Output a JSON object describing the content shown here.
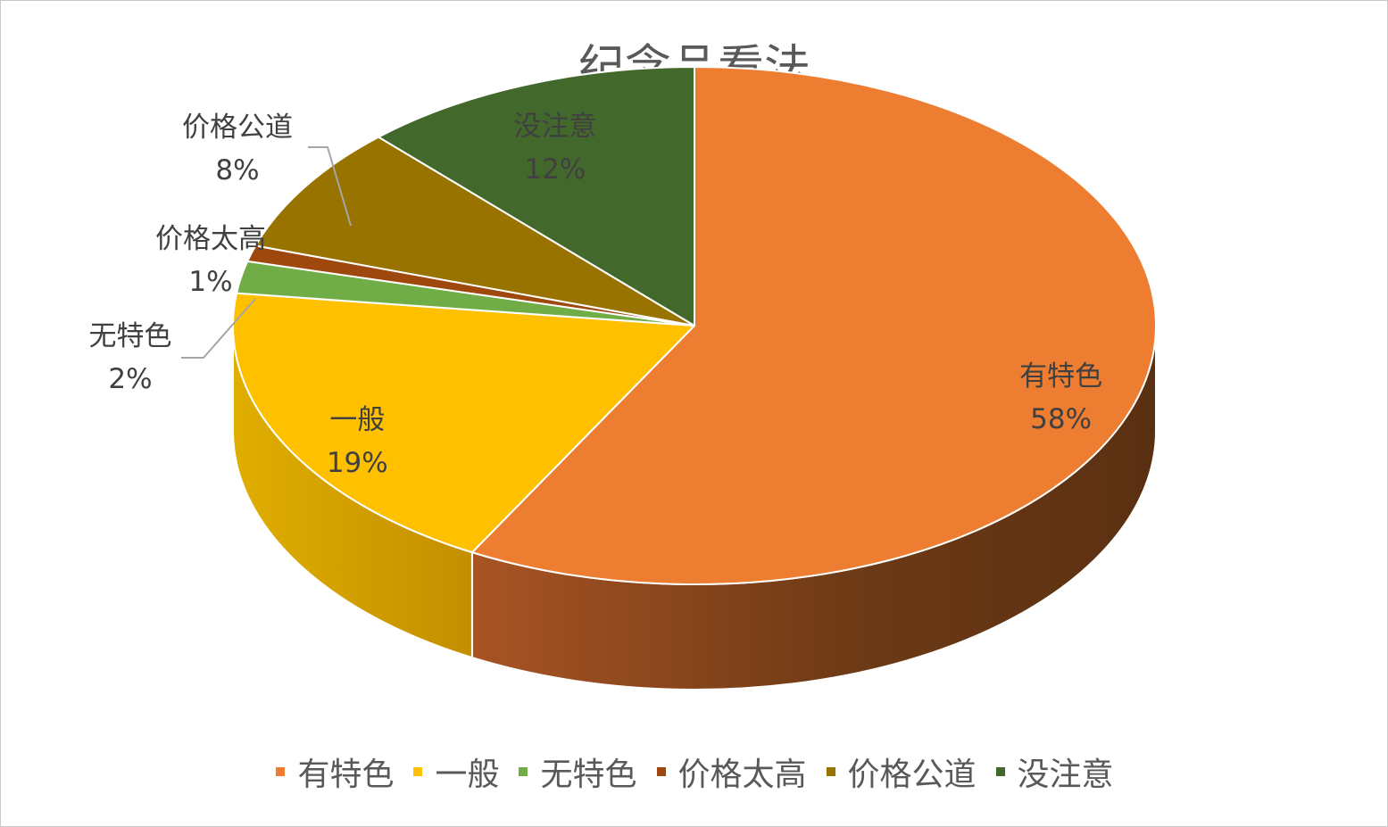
{
  "chart_data": {
    "type": "pie",
    "title": "纪念品看法",
    "categories": [
      "有特色",
      "一般",
      "无特色",
      "价格太高",
      "价格公道",
      "没注意"
    ],
    "values": [
      58,
      19,
      2,
      1,
      8,
      12
    ],
    "labels": [
      "58%",
      "19%",
      "2%",
      "1%",
      "8%",
      "12%"
    ],
    "colors": [
      "#ED7D31",
      "#FFC000",
      "#70AD47",
      "#9E480E",
      "#997300",
      "#43682B"
    ],
    "legend_position": "bottom"
  }
}
